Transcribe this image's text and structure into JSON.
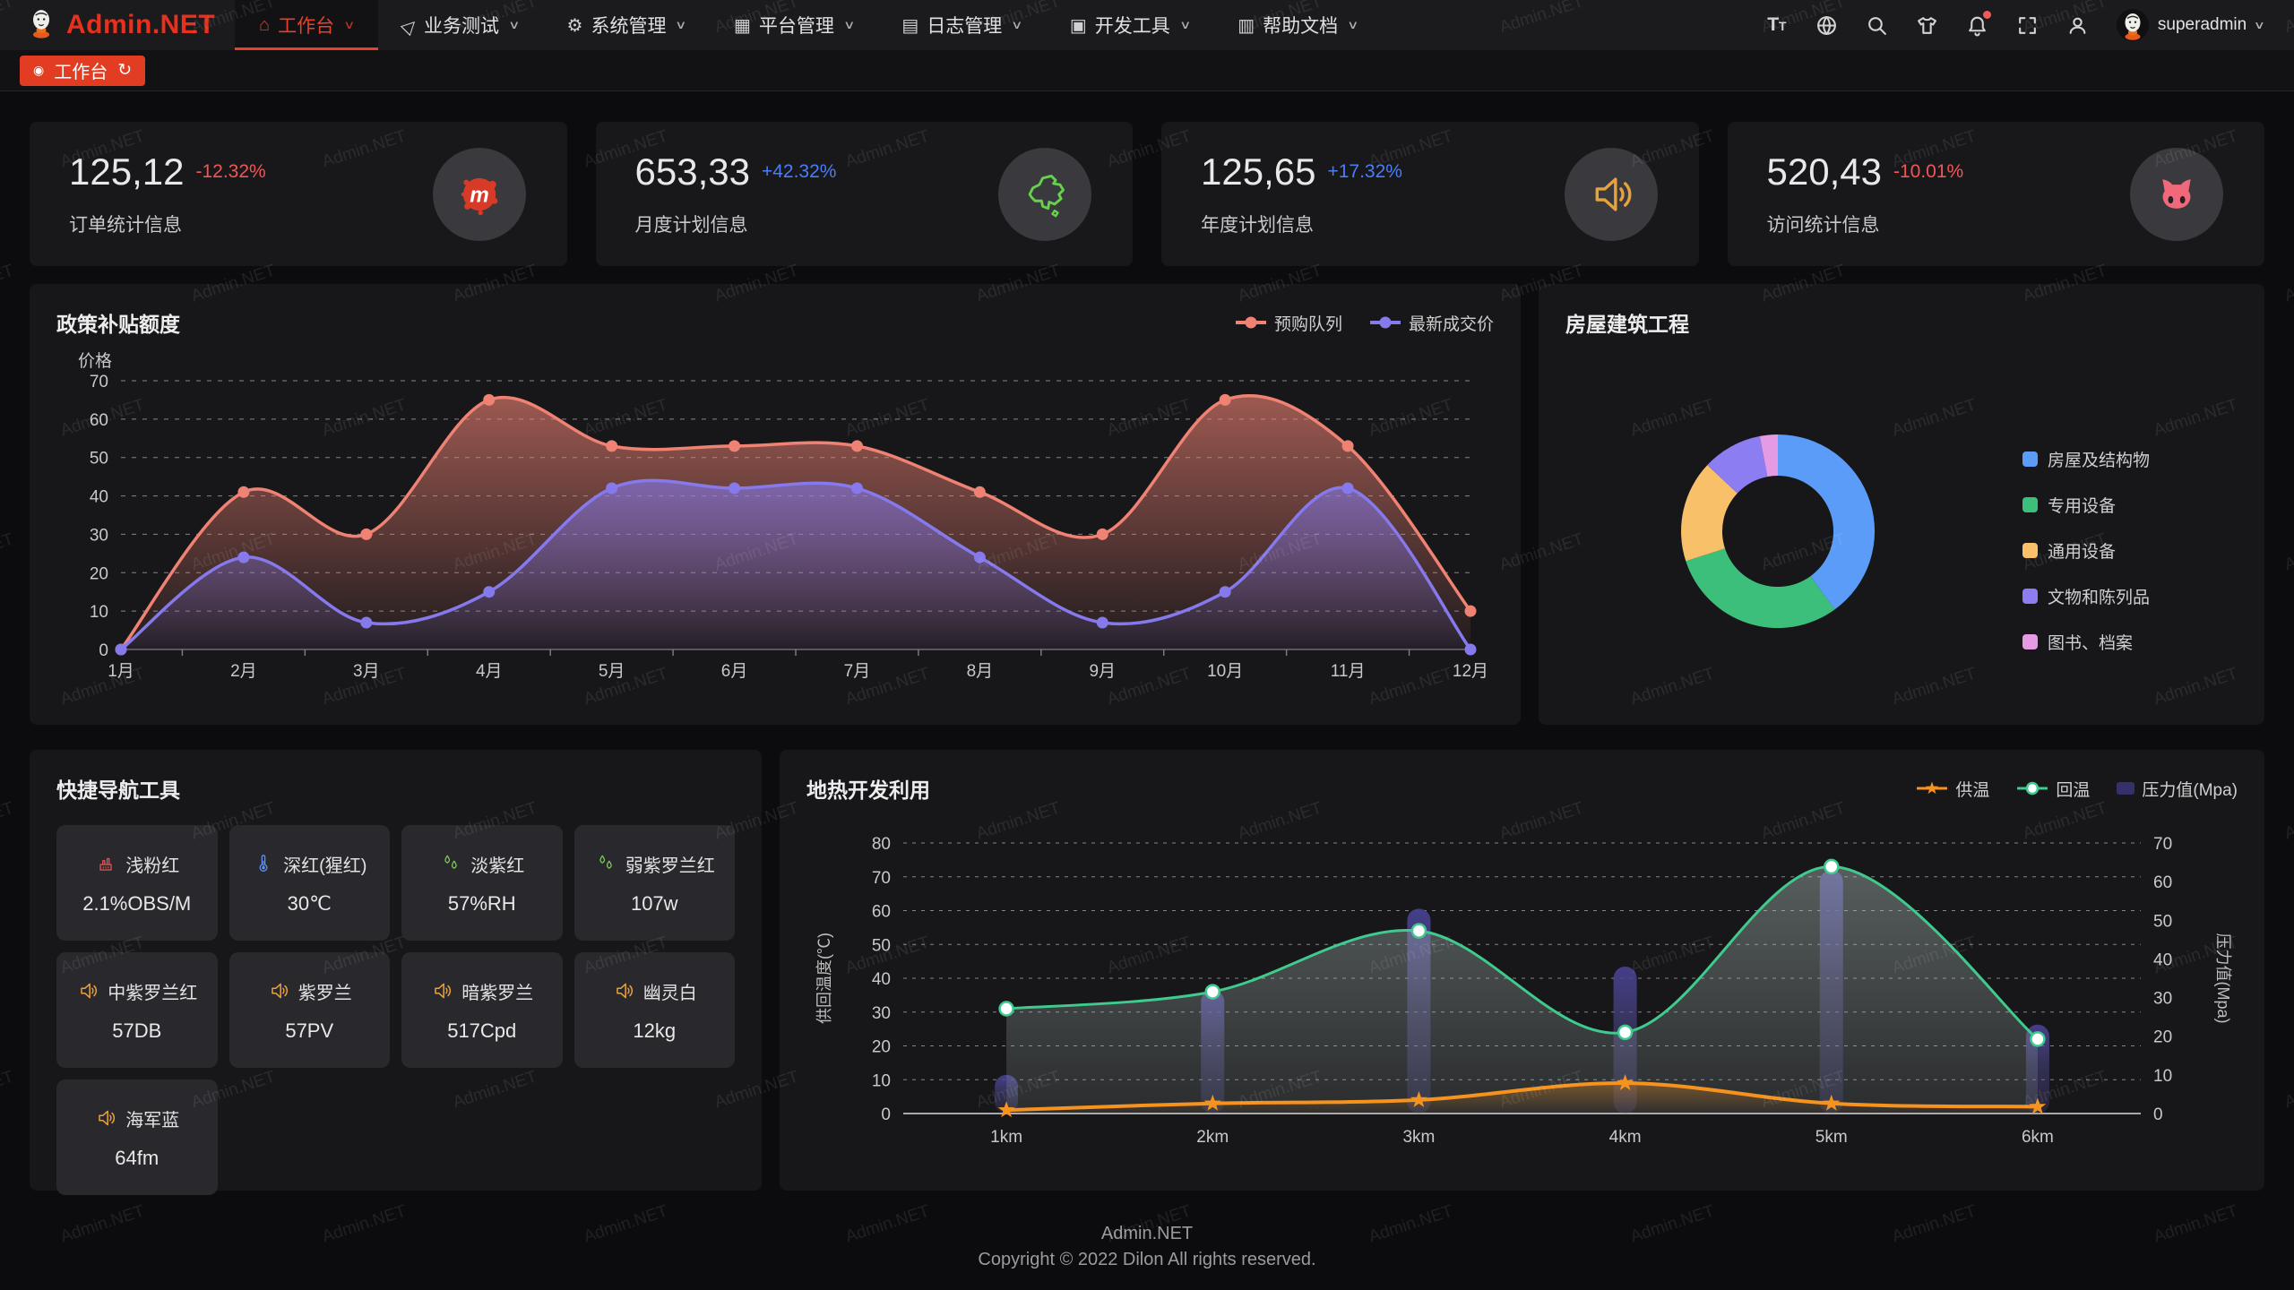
{
  "watermark": "Admin.NET",
  "header": {
    "logo": "Admin.NET",
    "menu": [
      {
        "label": "工作台",
        "icon": "home-icon",
        "active": true
      },
      {
        "label": "业务测试",
        "icon": "send-icon",
        "active": false
      },
      {
        "label": "系统管理",
        "icon": "gear-icon",
        "active": false
      },
      {
        "label": "平台管理",
        "icon": "grid-icon",
        "active": false
      },
      {
        "label": "日志管理",
        "icon": "log-icon",
        "active": false
      },
      {
        "label": "开发工具",
        "icon": "tools-icon",
        "active": false
      },
      {
        "label": "帮助文档",
        "icon": "docs-icon",
        "active": false
      }
    ],
    "toolbar_icons": [
      {
        "name": "font-size-icon",
        "badge": false
      },
      {
        "name": "language-icon",
        "badge": false
      },
      {
        "name": "search-icon",
        "badge": false
      },
      {
        "name": "theme-icon",
        "badge": false
      },
      {
        "name": "notification-icon",
        "badge": true
      },
      {
        "name": "fullscreen-icon",
        "badge": false
      },
      {
        "name": "profile-icon",
        "badge": false
      }
    ],
    "user": "superadmin"
  },
  "tabbar": {
    "active_tab": "工作台"
  },
  "stats": [
    {
      "value": "125,12",
      "delta": "-12.32%",
      "trend": "down",
      "label": "订单统计信息",
      "icon": "meetup-icon"
    },
    {
      "value": "653,33",
      "delta": "+42.32%",
      "trend": "up",
      "label": "月度计划信息",
      "icon": "china-map-icon"
    },
    {
      "value": "125,65",
      "delta": "+17.32%",
      "trend": "up",
      "label": "年度计划信息",
      "icon": "speaker-icon"
    },
    {
      "value": "520,43",
      "delta": "-10.01%",
      "trend": "down",
      "label": "访问统计信息",
      "icon": "cat-icon"
    }
  ],
  "chart_data": [
    {
      "type": "area",
      "title": "政策补贴额度",
      "ylabel": "价格",
      "ylim": [
        0,
        70
      ],
      "ytick_step": 10,
      "grid": true,
      "legend_position": "top-right",
      "categories": [
        "1月",
        "2月",
        "3月",
        "4月",
        "5月",
        "6月",
        "7月",
        "8月",
        "9月",
        "10月",
        "11月",
        "12月"
      ],
      "series": [
        {
          "name": "预购队列",
          "color": "#ef8273",
          "values": [
            0,
            41,
            30,
            65,
            53,
            53,
            53,
            41,
            30,
            65,
            53,
            10
          ]
        },
        {
          "name": "最新成交价",
          "color": "#8579ec",
          "values": [
            0,
            24,
            7,
            15,
            42,
            42,
            42,
            24,
            7,
            15,
            42,
            0
          ]
        }
      ]
    },
    {
      "type": "pie",
      "title": "房屋建筑工程",
      "legend_position": "right",
      "slices": [
        {
          "label": "房屋及结构物",
          "value": 40,
          "color": "#5b9cf8"
        },
        {
          "label": "专用设备",
          "value": 30,
          "color": "#3dbf7c"
        },
        {
          "label": "通用设备",
          "value": 17,
          "color": "#f8c169"
        },
        {
          "label": "文物和陈列品",
          "value": 10,
          "color": "#8d7df2"
        },
        {
          "label": "图书、档案",
          "value": 3,
          "color": "#e49be4"
        }
      ]
    },
    {
      "type": "line-bar",
      "title": "地热开发利用",
      "categories": [
        "1km",
        "2km",
        "3km",
        "4km",
        "5km",
        "6km"
      ],
      "ylabel_left": "供回温度(℃)",
      "ylabel_right": "压力值(Mpa)",
      "ylim_left": [
        0,
        80
      ],
      "ylim_right": [
        0,
        70
      ],
      "grid": true,
      "legend_position": "top-right",
      "series": [
        {
          "name": "供温",
          "type": "line",
          "axis": "left",
          "marker": "star",
          "color": "#f6921e",
          "values": [
            1,
            3,
            4,
            9,
            3,
            2
          ]
        },
        {
          "name": "回温",
          "type": "line",
          "axis": "left",
          "marker": "circle",
          "area": true,
          "color": "#3fca8e",
          "values": [
            31,
            36,
            54,
            24,
            73,
            22
          ]
        },
        {
          "name": "压力值(Mpa)",
          "type": "bar",
          "axis": "right",
          "color": "#4a4490",
          "values": [
            10,
            32,
            53,
            38,
            63,
            23
          ]
        }
      ]
    }
  ],
  "quick_nav": {
    "title": "快捷导航工具",
    "items": [
      {
        "label": "浅粉红",
        "value": "2.1%OBS/M",
        "icon": "furnace-icon",
        "color": "#e05555"
      },
      {
        "label": "深红(猩红)",
        "value": "30℃",
        "icon": "thermometer-icon",
        "color": "#5b8ff5"
      },
      {
        "label": "淡紫红",
        "value": "57%RH",
        "icon": "droplets-icon",
        "color": "#7ec855"
      },
      {
        "label": "弱紫罗兰红",
        "value": "107w",
        "icon": "droplets-icon",
        "color": "#7ec855"
      },
      {
        "label": "中紫罗兰红",
        "value": "57DB",
        "icon": "speaker-icon",
        "color": "#e8a23c"
      },
      {
        "label": "紫罗兰",
        "value": "57PV",
        "icon": "speaker-icon",
        "color": "#e8a23c"
      },
      {
        "label": "暗紫罗兰",
        "value": "517Cpd",
        "icon": "speaker-icon",
        "color": "#e8a23c"
      },
      {
        "label": "幽灵白",
        "value": "12kg",
        "icon": "speaker-icon",
        "color": "#e8a23c"
      },
      {
        "label": "海军蓝",
        "value": "64fm",
        "icon": "speaker-icon",
        "color": "#e8a23c"
      }
    ]
  },
  "footer": {
    "line1": "Admin.NET",
    "line2": "Copyright © 2022 Dilon All rights reserved."
  }
}
